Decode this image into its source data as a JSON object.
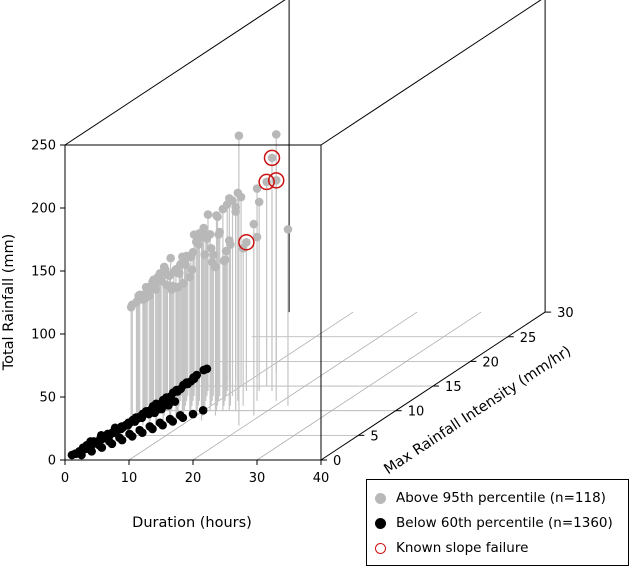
{
  "chart_data": {
    "type": "scatter3d",
    "x_axis": {
      "label": "Duration (hours)",
      "range": [
        0,
        40
      ],
      "ticks": [
        "0",
        "10",
        "20",
        "30",
        "40"
      ]
    },
    "y_axis": {
      "label": "Max Rainfall Intensity (mm/hr)",
      "range": [
        0,
        30
      ],
      "ticks": [
        "0",
        "5",
        "10",
        "15",
        "20",
        "25",
        "30"
      ]
    },
    "z_axis": {
      "label": "Total Rainfall (mm)",
      "range": [
        0,
        250
      ],
      "ticks": [
        "0",
        "50",
        "100",
        "150",
        "200",
        "250"
      ]
    },
    "legend": {
      "placement": "bottom-right",
      "entries": [
        {
          "label": "Above 95th percentile (n=118)",
          "color": "#b8b8b8",
          "marker": "filled-circle"
        },
        {
          "label": "Below 60th percentile (n=1360)",
          "color": "#000000",
          "marker": "filled-circle"
        },
        {
          "label": "Known slope failure",
          "color": "#cc1111",
          "marker": "open-circle"
        }
      ]
    },
    "series": [
      {
        "name": "Above 95th percentile (n=118)",
        "color": "#b8b8b8",
        "drop_lines": true,
        "points": [
          [
            19,
            7,
            230
          ],
          [
            19,
            12,
            175
          ],
          [
            19,
            9,
            152
          ],
          [
            16,
            14,
            185
          ],
          [
            12,
            18,
            188
          ],
          [
            13,
            12,
            165
          ],
          [
            14,
            15,
            162
          ],
          [
            11,
            13,
            155
          ],
          [
            15,
            10,
            158
          ],
          [
            22,
            11,
            140
          ],
          [
            10,
            15,
            150
          ],
          [
            13,
            10,
            160
          ],
          [
            9,
            14,
            148
          ],
          [
            9,
            18,
            145
          ],
          [
            7,
            16,
            145
          ],
          [
            8,
            16,
            138
          ],
          [
            12,
            10,
            155
          ],
          [
            10,
            10,
            145
          ],
          [
            8,
            12,
            132
          ],
          [
            6,
            14,
            140
          ],
          [
            14,
            14,
            150
          ],
          [
            12,
            14,
            118
          ],
          [
            9,
            13,
            130
          ],
          [
            7,
            12,
            133
          ],
          [
            5,
            13,
            128
          ],
          [
            11,
            10,
            140
          ],
          [
            10,
            11,
            125
          ],
          [
            9,
            10,
            135
          ],
          [
            8,
            10,
            122
          ],
          [
            7,
            10,
            120
          ],
          [
            6,
            9,
            125
          ],
          [
            5,
            9,
            118
          ],
          [
            4,
            10,
            112
          ],
          [
            6,
            8,
            118
          ],
          [
            5,
            8,
            110
          ],
          [
            4,
            9,
            110
          ],
          [
            3,
            10,
            105
          ],
          [
            3,
            9,
            103
          ],
          [
            2,
            11,
            105
          ],
          [
            2,
            10,
            102
          ],
          [
            4,
            8,
            105
          ],
          [
            3,
            8,
            100
          ],
          [
            1,
            11,
            100
          ],
          [
            1,
            10,
            98
          ],
          [
            3,
            7,
            98
          ],
          [
            2,
            8,
            95
          ],
          [
            1,
            9,
            95
          ],
          [
            0,
            10,
            92
          ],
          [
            12,
            8,
            148
          ],
          [
            11,
            9,
            142
          ],
          [
            10,
            9,
            138
          ],
          [
            9,
            8,
            130
          ],
          [
            8,
            8,
            120
          ],
          [
            7,
            8,
            115
          ],
          [
            6,
            7,
            108
          ],
          [
            5,
            7,
            103
          ],
          [
            4,
            7,
            100
          ],
          [
            10,
            13,
            115
          ],
          [
            9,
            12,
            110
          ],
          [
            8,
            13,
            112
          ],
          [
            7,
            11,
            108
          ],
          [
            6,
            11,
            112
          ],
          [
            5,
            11,
            105
          ],
          [
            4,
            12,
            108
          ],
          [
            3,
            12,
            102
          ],
          [
            2,
            12,
            100
          ],
          [
            1,
            12,
            95
          ],
          [
            9,
            9,
            110
          ],
          [
            8,
            9,
            105
          ],
          [
            7,
            9,
            102
          ],
          [
            6,
            10,
            98
          ],
          [
            5,
            10,
            96
          ],
          [
            4,
            11,
            95
          ],
          [
            13,
            9,
            118
          ],
          [
            12,
            11,
            115
          ],
          [
            11,
            12,
            112
          ],
          [
            14,
            10,
            135
          ],
          [
            13,
            11,
            128
          ],
          [
            11,
            11,
            150
          ],
          [
            8,
            11,
            128
          ],
          [
            6,
            12,
            118
          ],
          [
            3,
            11,
            96
          ],
          [
            2,
            9,
            93
          ],
          [
            1,
            8,
            90
          ],
          [
            0,
            9,
            88
          ],
          [
            0,
            11,
            90
          ],
          [
            15,
            11,
            125
          ],
          [
            16,
            12,
            130
          ],
          [
            10,
            12,
            132
          ],
          [
            9,
            11,
            120
          ],
          [
            7,
            13,
            125
          ],
          [
            5,
            12,
            115
          ],
          [
            4,
            13,
            110
          ],
          [
            3,
            13,
            105
          ]
        ]
      },
      {
        "name": "Below 60th percentile (n=1360)",
        "color": "#000000",
        "drop_lines": false,
        "points": [
          [
            0.5,
            0.5,
            2
          ],
          [
            1,
            0.5,
            3
          ],
          [
            1.5,
            1,
            4
          ],
          [
            2,
            1,
            6
          ],
          [
            2.5,
            1.5,
            7
          ],
          [
            3,
            1.5,
            8
          ],
          [
            3.5,
            2,
            9
          ],
          [
            4,
            2,
            10
          ],
          [
            4.5,
            2.5,
            12
          ],
          [
            5,
            2.5,
            13
          ],
          [
            5.5,
            3,
            14
          ],
          [
            6,
            3,
            16
          ],
          [
            6.5,
            3.5,
            18
          ],
          [
            7,
            3.5,
            20
          ],
          [
            7.5,
            4,
            21
          ],
          [
            8,
            4,
            23
          ],
          [
            8.5,
            4.5,
            25
          ],
          [
            9,
            4.5,
            27
          ],
          [
            9.5,
            5,
            28
          ],
          [
            10,
            5,
            30
          ],
          [
            10.5,
            5.5,
            32
          ],
          [
            11,
            5.5,
            34
          ],
          [
            11.5,
            6,
            36
          ],
          [
            12,
            6,
            38
          ],
          [
            12.5,
            6.5,
            40
          ],
          [
            13,
            6.5,
            42
          ],
          [
            13.5,
            7,
            44
          ],
          [
            14,
            7,
            45
          ],
          [
            1,
            1,
            2
          ],
          [
            1.5,
            1.5,
            3
          ],
          [
            2,
            2,
            5
          ],
          [
            2.5,
            2.5,
            6
          ],
          [
            3,
            3,
            7
          ],
          [
            3.5,
            3,
            8
          ],
          [
            4,
            3.5,
            10
          ],
          [
            4.5,
            3.5,
            11
          ],
          [
            5,
            4,
            12
          ],
          [
            5.5,
            4,
            14
          ],
          [
            6,
            4.5,
            15
          ],
          [
            6.5,
            4.5,
            17
          ],
          [
            7,
            5,
            18
          ],
          [
            7.5,
            5,
            20
          ],
          [
            8,
            5.5,
            22
          ],
          [
            8.5,
            5.5,
            23
          ],
          [
            9,
            6,
            25
          ],
          [
            9.5,
            6,
            27
          ],
          [
            10,
            6.5,
            29
          ],
          [
            10.5,
            6.5,
            31
          ],
          [
            11,
            7,
            33
          ],
          [
            11.5,
            7,
            35
          ],
          [
            12,
            7,
            37
          ],
          [
            0.5,
            1,
            1
          ],
          [
            0.5,
            1.5,
            1
          ],
          [
            0.5,
            2,
            2
          ],
          [
            0.5,
            2.5,
            2
          ],
          [
            0.5,
            3,
            3
          ],
          [
            1,
            2,
            2
          ],
          [
            1,
            3,
            3
          ],
          [
            1,
            4,
            4
          ],
          [
            1.5,
            2.5,
            3
          ],
          [
            1.5,
            3.5,
            4
          ],
          [
            2,
            3,
            4
          ],
          [
            2,
            4,
            5
          ],
          [
            2,
            5,
            6
          ],
          [
            2.5,
            3.5,
            5
          ],
          [
            2.5,
            4.5,
            6
          ],
          [
            3,
            4,
            6
          ],
          [
            3,
            5,
            7
          ],
          [
            3.5,
            4.5,
            7
          ],
          [
            3.5,
            5.5,
            8
          ],
          [
            4,
            5,
            8
          ],
          [
            4,
            6,
            9
          ],
          [
            4.5,
            5.5,
            9
          ],
          [
            5,
            6,
            10
          ],
          [
            5,
            7,
            11
          ],
          [
            5.5,
            6.5,
            11
          ],
          [
            6,
            7,
            12
          ],
          [
            6.5,
            7,
            13
          ],
          [
            7,
            6,
            14
          ],
          [
            7.5,
            6.5,
            15
          ],
          [
            8,
            7,
            16
          ],
          [
            8.5,
            6.5,
            18
          ],
          [
            9,
            7,
            19
          ],
          [
            3,
            2,
            4
          ],
          [
            4,
            2.5,
            5
          ],
          [
            5,
            3,
            6
          ],
          [
            6,
            3.5,
            7
          ],
          [
            7,
            4,
            8
          ],
          [
            8,
            4.5,
            9
          ],
          [
            9,
            5,
            10
          ],
          [
            10,
            5.5,
            11
          ],
          [
            11,
            6,
            12
          ],
          [
            2,
            0.5,
            2
          ],
          [
            3,
            1,
            3
          ],
          [
            4,
            1.5,
            4
          ],
          [
            5,
            2,
            5
          ],
          [
            6,
            2.5,
            6
          ],
          [
            7,
            3,
            7
          ],
          [
            8,
            3.5,
            8
          ],
          [
            9,
            4,
            9
          ],
          [
            10,
            4.5,
            10
          ],
          [
            11,
            5,
            11
          ],
          [
            12,
            5.5,
            12
          ],
          [
            13,
            6,
            13
          ],
          [
            14,
            6.5,
            14
          ]
        ]
      },
      {
        "name": "Known slope failure",
        "color": "#cc1111",
        "marker": "open-circle",
        "points": [
          [
            19,
            12,
            175
          ],
          [
            16,
            14,
            185
          ],
          [
            12,
            14,
            118
          ],
          [
            14,
            15,
            162
          ]
        ]
      }
    ]
  }
}
